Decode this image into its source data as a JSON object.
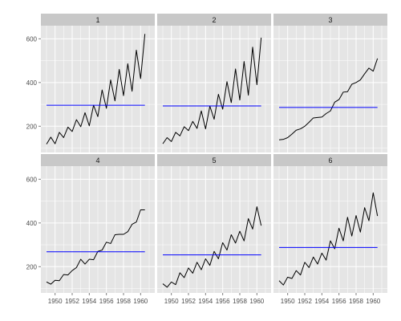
{
  "chart_data": [
    {
      "type": "line",
      "facet": "1",
      "x_tick_labels": [
        "1950",
        "1952",
        "1954",
        "1956",
        "1958",
        "1960"
      ],
      "y_tick_labels": [
        "200",
        "400",
        "600"
      ],
      "xlim": [
        1949,
        1961
      ],
      "ylim": [
        80,
        660
      ],
      "grid": true,
      "series": [
        {
          "x": [
            1949,
            1949.5,
            1950,
            1950.5,
            1951,
            1951.5,
            1952,
            1952.5,
            1953,
            1953.5,
            1954,
            1954.5,
            1955,
            1955.5,
            1956,
            1956.5,
            1957,
            1957.5,
            1958,
            1958.5,
            1959,
            1959.5,
            1960,
            1960.5
          ],
          "values": [
            118,
            150,
            120,
            172,
            148,
            196,
            176,
            230,
            198,
            262,
            202,
            296,
            244,
            366,
            282,
            412,
            316,
            460,
            340,
            486,
            360,
            548,
            418,
            622
          ],
          "color": "#000000"
        },
        {
          "x": [
            1949,
            1960.5
          ],
          "values": [
            296,
            296
          ],
          "color": "#0000ff"
        }
      ]
    },
    {
      "type": "line",
      "facet": "2",
      "x_tick_labels": [
        "1950",
        "1952",
        "1954",
        "1956",
        "1958",
        "1960"
      ],
      "y_tick_labels": [
        "200",
        "400",
        "600"
      ],
      "xlim": [
        1949,
        1961
      ],
      "ylim": [
        80,
        660
      ],
      "grid": true,
      "series": [
        {
          "x": [
            1949,
            1949.5,
            1950,
            1950.5,
            1951,
            1951.5,
            1952,
            1952.5,
            1953,
            1953.5,
            1954,
            1954.5,
            1955,
            1955.5,
            1956,
            1956.5,
            1957,
            1957.5,
            1958,
            1958.5,
            1959,
            1959.5,
            1960,
            1960.5
          ],
          "values": [
            120,
            148,
            130,
            172,
            156,
            198,
            180,
            222,
            190,
            270,
            188,
            292,
            232,
            346,
            278,
            404,
            308,
            462,
            320,
            496,
            342,
            562,
            390,
            605
          ],
          "color": "#000000"
        },
        {
          "x": [
            1949,
            1960.5
          ],
          "values": [
            293,
            293
          ],
          "color": "#0000ff"
        }
      ]
    },
    {
      "type": "line",
      "facet": "3",
      "x_tick_labels": [
        "1950",
        "1952",
        "1954",
        "1956",
        "1958",
        "1960"
      ],
      "y_tick_labels": [
        "200",
        "400",
        "600"
      ],
      "xlim": [
        1949,
        1961
      ],
      "ylim": [
        80,
        660
      ],
      "grid": true,
      "series": [
        {
          "x": [
            1949,
            1949.5,
            1950,
            1950.5,
            1951,
            1951.5,
            1952,
            1952.5,
            1953,
            1953.5,
            1954,
            1954.5,
            1955,
            1955.5,
            1956,
            1956.5,
            1957,
            1957.5,
            1958,
            1958.5,
            1959,
            1959.5,
            1960,
            1960.5
          ],
          "values": [
            138,
            140,
            148,
            164,
            182,
            188,
            200,
            218,
            238,
            240,
            242,
            258,
            270,
            310,
            322,
            356,
            358,
            392,
            400,
            412,
            440,
            466,
            452,
            510
          ],
          "color": "#000000"
        },
        {
          "x": [
            1949,
            1960.5
          ],
          "values": [
            286,
            286
          ],
          "color": "#0000ff"
        }
      ]
    },
    {
      "type": "line",
      "facet": "4",
      "x_tick_labels": [
        "1950",
        "1952",
        "1954",
        "1956",
        "1958",
        "1960"
      ],
      "y_tick_labels": [
        "200",
        "400",
        "600"
      ],
      "xlim": [
        1949,
        1961
      ],
      "ylim": [
        80,
        660
      ],
      "grid": true,
      "series": [
        {
          "x": [
            1949,
            1949.5,
            1950,
            1950.5,
            1951,
            1951.5,
            1952,
            1952.5,
            1953,
            1953.5,
            1954,
            1954.5,
            1955,
            1955.5,
            1956,
            1956.5,
            1957,
            1957.5,
            1958,
            1958.5,
            1959,
            1959.5,
            1960,
            1960.5
          ],
          "values": [
            130,
            120,
            138,
            136,
            164,
            162,
            182,
            196,
            234,
            212,
            234,
            232,
            270,
            276,
            312,
            306,
            346,
            348,
            348,
            360,
            394,
            404,
            460,
            460
          ],
          "color": "#000000"
        },
        {
          "x": [
            1949,
            1960.5
          ],
          "values": [
            268,
            268
          ],
          "color": "#0000ff"
        }
      ]
    },
    {
      "type": "line",
      "facet": "5",
      "x_tick_labels": [
        "1950",
        "1952",
        "1954",
        "1956",
        "1958",
        "1960"
      ],
      "y_tick_labels": [
        "200",
        "400",
        "600"
      ],
      "xlim": [
        1949,
        1961
      ],
      "ylim": [
        80,
        660
      ],
      "grid": true,
      "series": [
        {
          "x": [
            1949,
            1949.5,
            1950,
            1950.5,
            1951,
            1951.5,
            1952,
            1952.5,
            1953,
            1953.5,
            1954,
            1954.5,
            1955,
            1955.5,
            1956,
            1956.5,
            1957,
            1957.5,
            1958,
            1958.5,
            1959,
            1959.5,
            1960,
            1960.5
          ],
          "values": [
            122,
            106,
            130,
            118,
            172,
            150,
            194,
            170,
            220,
            186,
            236,
            206,
            270,
            236,
            310,
            276,
            346,
            308,
            362,
            318,
            420,
            372,
            474,
            388
          ],
          "color": "#000000"
        },
        {
          "x": [
            1949,
            1960.5
          ],
          "values": [
            254,
            254
          ],
          "color": "#0000ff"
        }
      ]
    },
    {
      "type": "line",
      "facet": "6",
      "x_tick_labels": [
        "1950",
        "1952",
        "1954",
        "1956",
        "1958",
        "1960"
      ],
      "y_tick_labels": [
        "200",
        "400",
        "600"
      ],
      "xlim": [
        1949,
        1961
      ],
      "ylim": [
        80,
        660
      ],
      "grid": true,
      "series": [
        {
          "x": [
            1949,
            1949.5,
            1950,
            1950.5,
            1951,
            1951.5,
            1952,
            1952.5,
            1953,
            1953.5,
            1954,
            1954.5,
            1955,
            1955.5,
            1956,
            1956.5,
            1957,
            1957.5,
            1958,
            1958.5,
            1959,
            1959.5,
            1960,
            1960.5
          ],
          "values": [
            136,
            116,
            152,
            146,
            182,
            162,
            220,
            196,
            244,
            212,
            262,
            230,
            318,
            282,
            376,
            318,
            426,
            340,
            434,
            358,
            470,
            410,
            538,
            432
          ],
          "color": "#000000"
        },
        {
          "x": [
            1949,
            1960.5
          ],
          "values": [
            288,
            288
          ],
          "color": "#0000ff"
        }
      ]
    }
  ]
}
